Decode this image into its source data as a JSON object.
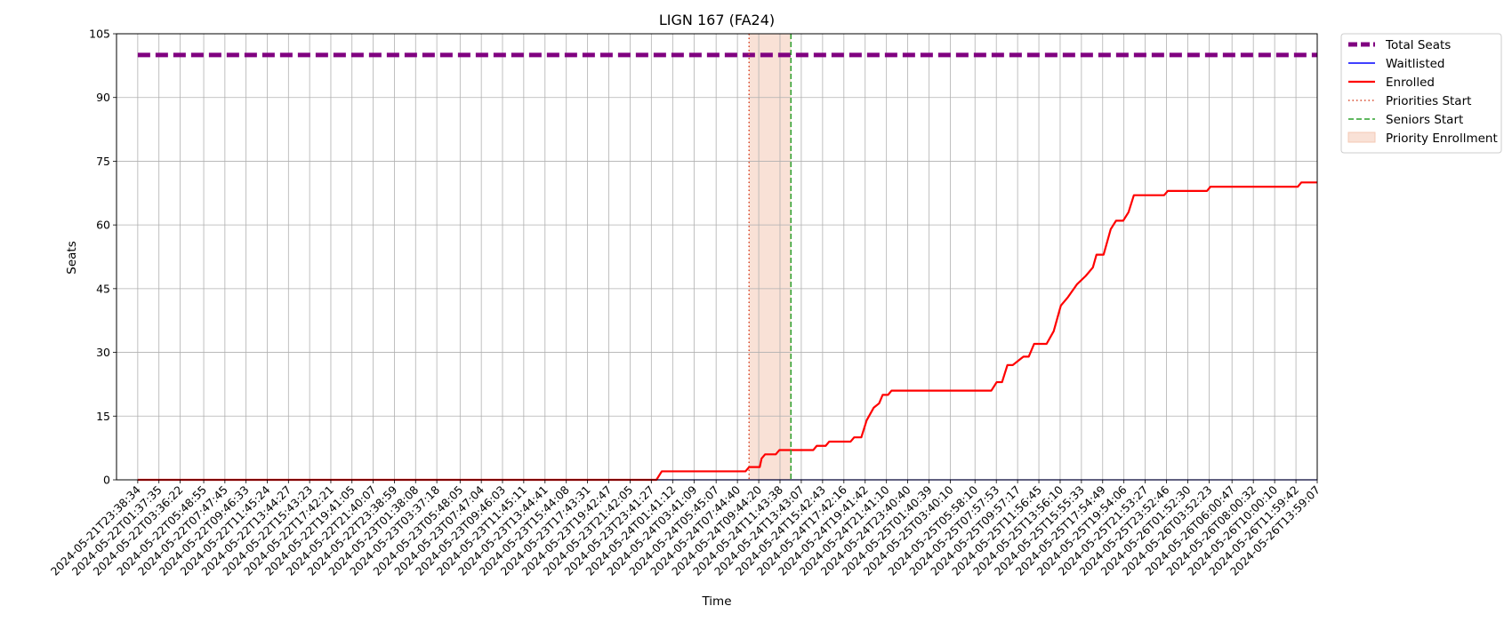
{
  "chart_data": {
    "type": "line",
    "title": "LIGN 167 (FA24)",
    "xlabel": "Time",
    "ylabel": "Seats",
    "ylim": [
      0,
      105
    ],
    "yticks": [
      0,
      15,
      30,
      45,
      60,
      75,
      90,
      105
    ],
    "grid": true,
    "legend_position": "outside-top-right",
    "x_tick_labels": [
      "2024-05-21T23:38:34",
      "2024-05-22T01:37:35",
      "2024-05-22T03:36:22",
      "2024-05-22T05:48:55",
      "2024-05-22T07:47:45",
      "2024-05-22T09:46:33",
      "2024-05-22T11:45:24",
      "2024-05-22T13:44:27",
      "2024-05-22T15:43:23",
      "2024-05-22T17:42:21",
      "2024-05-22T19:41:05",
      "2024-05-22T21:40:07",
      "2024-05-22T23:38:59",
      "2024-05-23T01:38:08",
      "2024-05-23T03:37:18",
      "2024-05-23T05:48:05",
      "2024-05-23T07:47:04",
      "2024-05-23T09:46:03",
      "2024-05-23T11:45:11",
      "2024-05-23T13:44:41",
      "2024-05-23T15:44:08",
      "2024-05-23T17:43:31",
      "2024-05-23T19:42:47",
      "2024-05-23T21:42:05",
      "2024-05-23T23:41:27",
      "2024-05-24T01:41:12",
      "2024-05-24T03:41:09",
      "2024-05-24T05:45:07",
      "2024-05-24T07:44:40",
      "2024-05-24T09:44:20",
      "2024-05-24T11:43:38",
      "2024-05-24T13:43:07",
      "2024-05-24T15:42:43",
      "2024-05-24T17:42:16",
      "2024-05-24T19:41:42",
      "2024-05-24T21:41:10",
      "2024-05-24T23:40:40",
      "2024-05-25T01:40:39",
      "2024-05-25T03:40:10",
      "2024-05-25T05:58:10",
      "2024-05-25T07:57:53",
      "2024-05-25T09:57:17",
      "2024-05-25T11:56:45",
      "2024-05-25T13:56:10",
      "2024-05-25T15:55:33",
      "2024-05-25T17:54:49",
      "2024-05-25T19:54:06",
      "2024-05-25T21:53:27",
      "2024-05-25T23:52:46",
      "2024-05-26T01:52:30",
      "2024-05-26T03:52:23",
      "2024-05-26T06:00:47",
      "2024-05-26T08:00:32",
      "2024-05-26T10:00:10",
      "2024-05-26T11:59:42",
      "2024-05-26T13:59:07"
    ],
    "series": [
      {
        "name": "Total Seats",
        "color": "#800080",
        "style": "dashed",
        "points": [
          [
            "2024-05-21T23:38:34",
            100
          ],
          [
            "2024-05-26T13:59:07",
            100
          ]
        ]
      },
      {
        "name": "Waitlisted",
        "color": "#0000ff",
        "style": "solid",
        "points": [
          [
            "2024-05-21T23:38:34",
            0
          ],
          [
            "2024-05-26T13:59:07",
            0
          ]
        ]
      },
      {
        "name": "Enrolled",
        "color": "#ff0000",
        "style": "solid",
        "points": [
          [
            "2024-05-21T23:38:34",
            0
          ],
          [
            "2024-05-24T00:10:00",
            0
          ],
          [
            "2024-05-24T00:40:00",
            2
          ],
          [
            "2024-05-24T08:30:00",
            2
          ],
          [
            "2024-05-24T08:50:00",
            3
          ],
          [
            "2024-05-24T09:50:00",
            3
          ],
          [
            "2024-05-24T10:00:00",
            5
          ],
          [
            "2024-05-24T10:20:00",
            6
          ],
          [
            "2024-05-24T11:20:00",
            6
          ],
          [
            "2024-05-24T11:40:00",
            7
          ],
          [
            "2024-05-24T14:50:00",
            7
          ],
          [
            "2024-05-24T15:10:00",
            8
          ],
          [
            "2024-05-24T16:00:00",
            8
          ],
          [
            "2024-05-24T16:20:00",
            9
          ],
          [
            "2024-05-24T18:20:00",
            9
          ],
          [
            "2024-05-24T18:40:00",
            10
          ],
          [
            "2024-05-24T19:20:00",
            10
          ],
          [
            "2024-05-24T19:50:00",
            14
          ],
          [
            "2024-05-24T20:30:00",
            17
          ],
          [
            "2024-05-24T21:00:00",
            18
          ],
          [
            "2024-05-24T21:20:00",
            20
          ],
          [
            "2024-05-24T21:50:00",
            20
          ],
          [
            "2024-05-24T22:10:00",
            21
          ],
          [
            "2024-05-25T07:30:00",
            21
          ],
          [
            "2024-05-25T08:00:00",
            23
          ],
          [
            "2024-05-25T08:30:00",
            23
          ],
          [
            "2024-05-25T09:00:00",
            27
          ],
          [
            "2024-05-25T09:30:00",
            27
          ],
          [
            "2024-05-25T10:00:00",
            28
          ],
          [
            "2024-05-25T10:30:00",
            29
          ],
          [
            "2024-05-25T11:00:00",
            29
          ],
          [
            "2024-05-25T11:30:00",
            32
          ],
          [
            "2024-05-25T12:40:00",
            32
          ],
          [
            "2024-05-25T13:20:00",
            35
          ],
          [
            "2024-05-25T14:00:00",
            41
          ],
          [
            "2024-05-25T14:40:00",
            43
          ],
          [
            "2024-05-25T15:30:00",
            46
          ],
          [
            "2024-05-25T16:20:00",
            48
          ],
          [
            "2024-05-25T17:00:00",
            50
          ],
          [
            "2024-05-25T17:20:00",
            53
          ],
          [
            "2024-05-25T18:00:00",
            53
          ],
          [
            "2024-05-25T18:40:00",
            59
          ],
          [
            "2024-05-25T19:10:00",
            61
          ],
          [
            "2024-05-25T19:50:00",
            61
          ],
          [
            "2024-05-25T20:20:00",
            63
          ],
          [
            "2024-05-25T20:50:00",
            67
          ],
          [
            "2024-05-25T23:40:00",
            67
          ],
          [
            "2024-05-26T00:00:00",
            68
          ],
          [
            "2024-05-26T03:40:00",
            68
          ],
          [
            "2024-05-26T04:00:00",
            69
          ],
          [
            "2024-05-26T12:10:00",
            69
          ],
          [
            "2024-05-26T12:30:00",
            70
          ],
          [
            "2024-05-26T13:59:07",
            70
          ]
        ]
      },
      {
        "name": "Priorities Start",
        "color": "#d9482b",
        "style": "dotted",
        "type": "vline",
        "x": "2024-05-24T08:50:00"
      },
      {
        "name": "Seniors Start",
        "color": "#2ca02c",
        "style": "dashed",
        "type": "vline",
        "x": "2024-05-24T12:45:00"
      },
      {
        "name": "Priority Enrollment",
        "color": "#f4c9b4",
        "type": "span",
        "x_start": "2024-05-24T08:50:00",
        "x_end": "2024-05-24T12:45:00"
      }
    ]
  }
}
